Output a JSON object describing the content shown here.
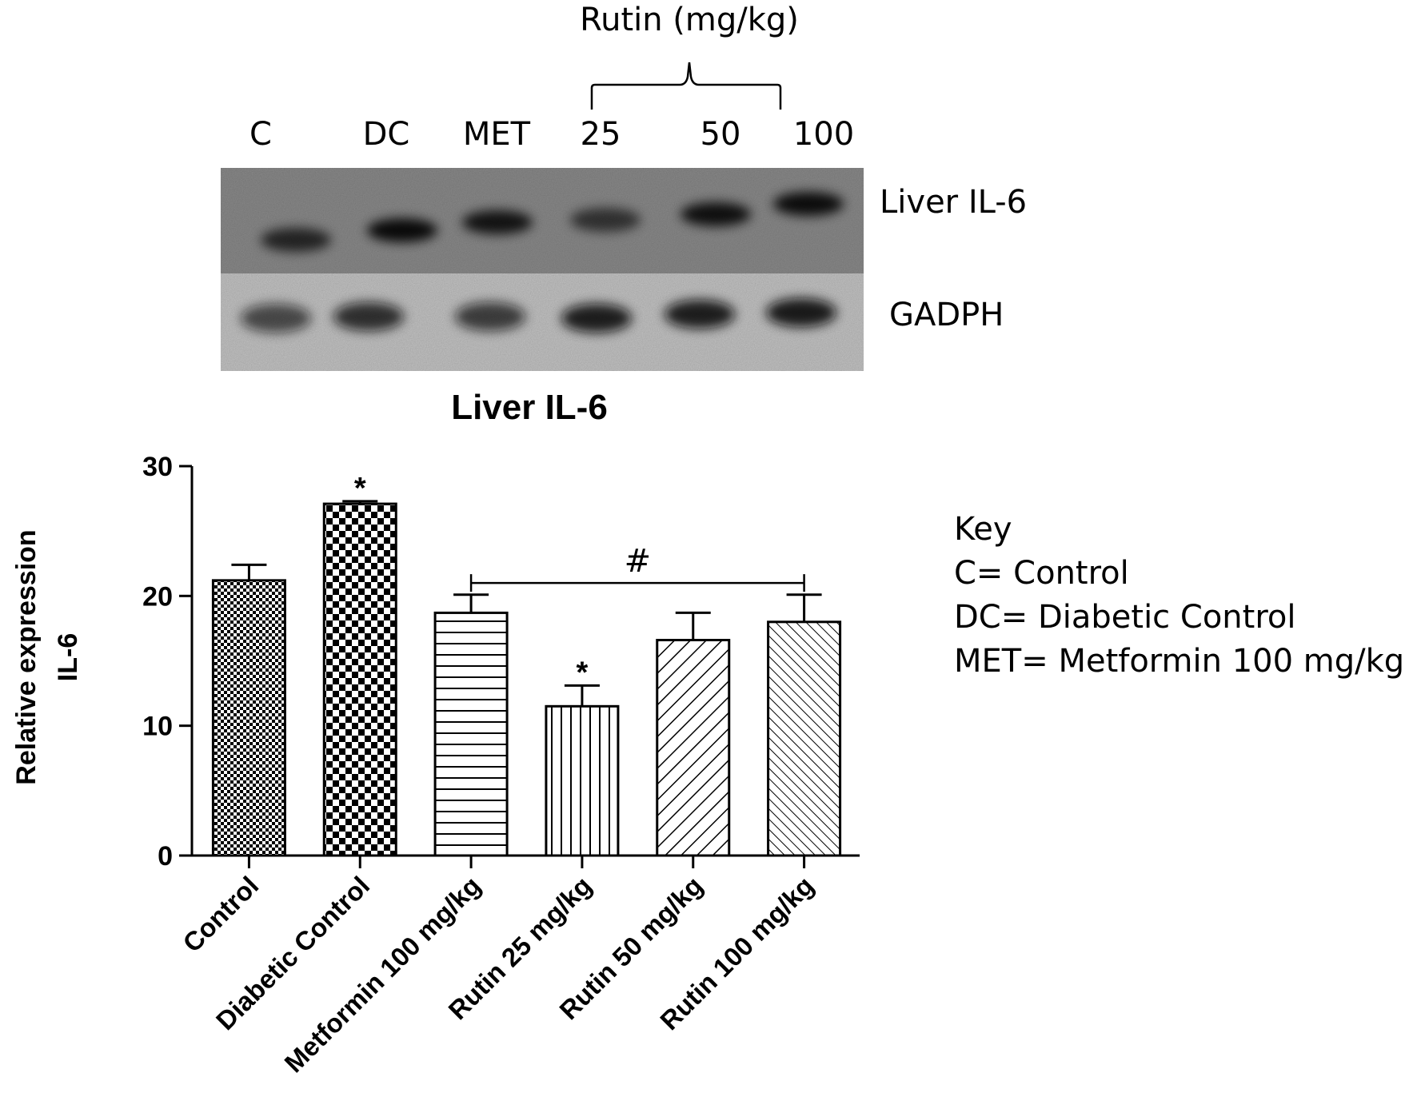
{
  "blot": {
    "lane_labels": [
      "C",
      "DC",
      "MET",
      "25",
      "50",
      "100"
    ],
    "rutin_label": "Rutin (mg/kg)",
    "band_labels": [
      "Liver IL-6",
      "GADPH"
    ],
    "il6_band_intensity": [
      0.72,
      0.92,
      0.85,
      0.62,
      0.88,
      0.9
    ],
    "gapdh_band_intensity": [
      0.65,
      0.8,
      0.72,
      0.9,
      0.9,
      0.92
    ]
  },
  "key": {
    "title": "Key",
    "lines": [
      "C= Control",
      "DC= Diabetic Control",
      "MET= Metformin 100 mg/kg"
    ]
  },
  "colors": {
    "ink": "#000000",
    "blot_top": "#8a8a8a",
    "blot_bottom": "#c4c4c4"
  },
  "chart_data": {
    "type": "bar",
    "title": "Liver IL-6",
    "xlabel": "",
    "ylabel": "Relative expression IL-6",
    "ylabel_lines": [
      "Relative expression",
      "IL-6"
    ],
    "ylim": [
      0,
      30
    ],
    "yticks": [
      0,
      10,
      20,
      30
    ],
    "grid": false,
    "categories": [
      "Control",
      "Diabetic Control",
      "Metformin 100 mg/kg",
      "Rutin 25 mg/kg",
      "Rutin 50 mg/kg",
      "Rutin 100 mg/kg"
    ],
    "values": [
      21.2,
      27.1,
      18.7,
      11.5,
      16.6,
      18.0
    ],
    "errors": [
      1.2,
      0.2,
      1.4,
      1.6,
      2.1,
      2.1
    ],
    "patterns": [
      "fine-checker",
      "coarse-checker",
      "horizontal-lines",
      "vertical-lines",
      "diagonal-lines",
      "dense-diagonal-lines"
    ],
    "annotations": [
      {
        "text": "*",
        "category": "Diabetic Control"
      },
      {
        "text": "*",
        "category": "Rutin 25 mg/kg"
      },
      {
        "text": "#",
        "from": "Metformin 100 mg/kg",
        "to": "Rutin 100 mg/kg",
        "level": 21.0
      }
    ]
  }
}
